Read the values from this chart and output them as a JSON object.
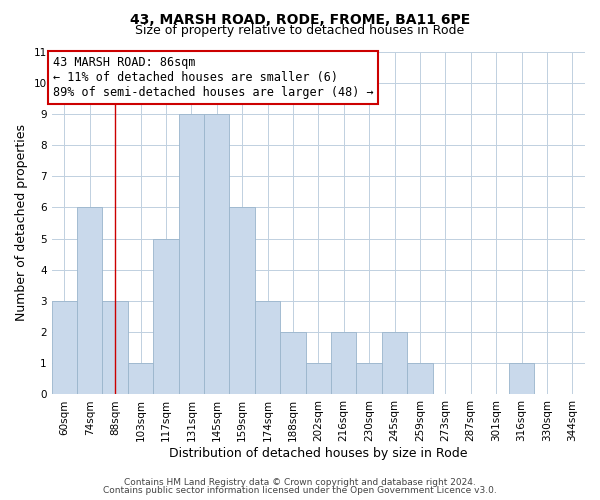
{
  "title": "43, MARSH ROAD, RODE, FROME, BA11 6PE",
  "subtitle": "Size of property relative to detached houses in Rode",
  "xlabel": "Distribution of detached houses by size in Rode",
  "ylabel": "Number of detached properties",
  "bar_labels": [
    "60sqm",
    "74sqm",
    "88sqm",
    "103sqm",
    "117sqm",
    "131sqm",
    "145sqm",
    "159sqm",
    "174sqm",
    "188sqm",
    "202sqm",
    "216sqm",
    "230sqm",
    "245sqm",
    "259sqm",
    "273sqm",
    "287sqm",
    "301sqm",
    "316sqm",
    "330sqm",
    "344sqm"
  ],
  "bar_heights": [
    3,
    6,
    3,
    1,
    5,
    9,
    9,
    6,
    3,
    2,
    1,
    2,
    1,
    2,
    1,
    0,
    0,
    0,
    1,
    0,
    0
  ],
  "bar_color": "#c9d9eb",
  "bar_edge_color": "#9ab5cc",
  "vline_index": 2,
  "vline_color": "#cc0000",
  "ylim": [
    0,
    11
  ],
  "yticks": [
    0,
    1,
    2,
    3,
    4,
    5,
    6,
    7,
    8,
    9,
    10,
    11
  ],
  "annotation_line1": "43 MARSH ROAD: 86sqm",
  "annotation_line2": "← 11% of detached houses are smaller (6)",
  "annotation_line3": "89% of semi-detached houses are larger (48) →",
  "annotation_box_color": "#ffffff",
  "annotation_box_edge": "#cc0000",
  "footer1": "Contains HM Land Registry data © Crown copyright and database right 2024.",
  "footer2": "Contains public sector information licensed under the Open Government Licence v3.0.",
  "bg_color": "#ffffff",
  "grid_color": "#c0d0e0",
  "title_fontsize": 10,
  "subtitle_fontsize": 9,
  "xlabel_fontsize": 9,
  "ylabel_fontsize": 9,
  "tick_fontsize": 7.5,
  "annotation_fontsize": 8.5,
  "footer_fontsize": 6.5
}
